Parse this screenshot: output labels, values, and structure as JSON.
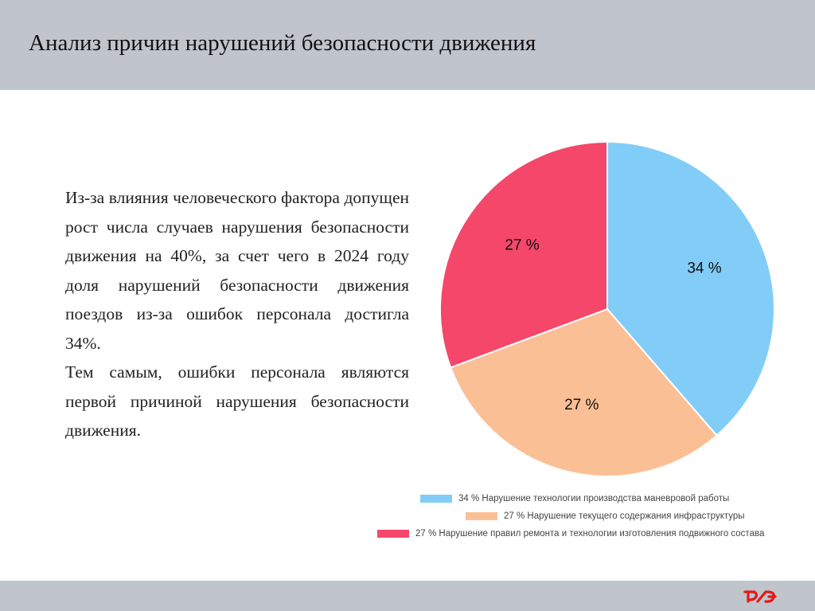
{
  "header": {
    "title": "Анализ причин нарушений безопасности движения"
  },
  "body_text": {
    "paragraph1": "Из-за влияния человеческого фактора допущен рост числа случаев нарушения безопасности движения на 40%, за счет чего в 2024 году доля нарушений безопасности движения поездов из-за ошибок персонала достигла 34%.",
    "paragraph2": "Тем самым, ошибки персонала являются первой причиной нарушения безопасности движения."
  },
  "footer": {
    "logo_text": "РЖД"
  },
  "chart_data": {
    "type": "pie",
    "title": "",
    "start": "top, clockwise",
    "slices": [
      {
        "label": "34 %",
        "value": 34,
        "color": "#82cdf7",
        "legend": "34 % Нарушение технологии производства маневровой работы"
      },
      {
        "label": "27 %",
        "value": 27,
        "color": "#fbbf95",
        "legend": "27 % Нарушение текущего содержания инфраструктуры"
      },
      {
        "label": "27 %",
        "value": 27,
        "color": "#f4476a",
        "legend": "27 % Нарушение правил ремонта и технологии изготовления подвижного состава"
      }
    ],
    "legend_placement": "bottom"
  }
}
